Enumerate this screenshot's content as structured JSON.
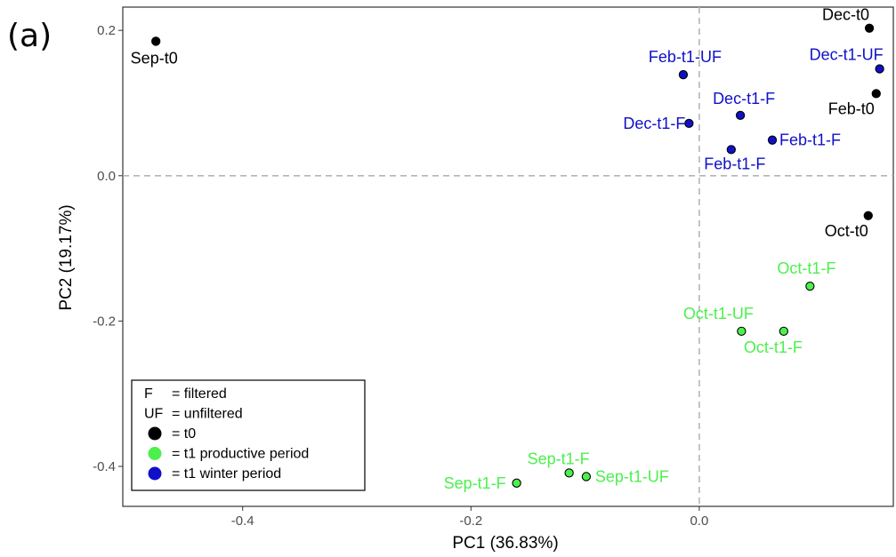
{
  "panel_label": "(a)",
  "chart_data": {
    "type": "scatter",
    "xlabel": "PC1 (36.83%)",
    "ylabel": "PC2 (19.17%)",
    "xlim": [
      -0.505,
      0.17
    ],
    "ylim": [
      -0.455,
      0.232
    ],
    "xticks": [
      -0.4,
      -0.2,
      0.0
    ],
    "yticks": [
      -0.4,
      -0.2,
      0.0,
      0.2
    ],
    "xtick_labels": [
      "-0.4",
      "-0.2",
      "0.0"
    ],
    "ytick_labels": [
      "-0.4",
      "-0.2",
      "0.0",
      "0.2"
    ],
    "reference_lines": {
      "x": 0.0,
      "y": 0.0,
      "style": "dashed"
    },
    "grid": false,
    "group_colors": {
      "t0": "#000000",
      "productive": "#4CF04C",
      "winter": "#1010C8"
    },
    "points": [
      {
        "label": "Sep-t0",
        "x": -0.476,
        "y": 0.185,
        "group": "t0"
      },
      {
        "label": "Dec-t0",
        "x": 0.149,
        "y": 0.203,
        "group": "t0"
      },
      {
        "label": "Feb-t0",
        "x": 0.155,
        "y": 0.113,
        "group": "t0"
      },
      {
        "label": "Oct-t0",
        "x": 0.148,
        "y": -0.055,
        "group": "t0"
      },
      {
        "label": "Feb-t1-UF",
        "x": -0.014,
        "y": 0.139,
        "group": "winter"
      },
      {
        "label": "Dec-t1-UF",
        "x": 0.158,
        "y": 0.147,
        "group": "winter"
      },
      {
        "label": "Dec-t1-F",
        "x": 0.036,
        "y": 0.083,
        "group": "winter"
      },
      {
        "label": "Dec-t1-F",
        "x": -0.009,
        "y": 0.072,
        "group": "winter"
      },
      {
        "label": "Feb-t1-F",
        "x": 0.064,
        "y": 0.049,
        "group": "winter"
      },
      {
        "label": "Feb-t1-F",
        "x": 0.028,
        "y": 0.036,
        "group": "winter"
      },
      {
        "label": "Oct-t1-F",
        "x": 0.097,
        "y": -0.152,
        "group": "productive"
      },
      {
        "label": "Oct-t1-UF",
        "x": 0.037,
        "y": -0.214,
        "group": "productive"
      },
      {
        "label": "Oct-t1-F",
        "x": 0.074,
        "y": -0.214,
        "group": "productive"
      },
      {
        "label": "Sep-t1-F",
        "x": -0.114,
        "y": -0.409,
        "group": "productive"
      },
      {
        "label": "Sep-t1-UF",
        "x": -0.099,
        "y": -0.414,
        "group": "productive"
      },
      {
        "label": "Sep-t1-F",
        "x": -0.16,
        "y": -0.423,
        "group": "productive"
      }
    ],
    "legend": {
      "placement": "bottom-left",
      "entries": [
        {
          "key": "F",
          "text": "= filtered"
        },
        {
          "key": "UF",
          "text": "= unfiltered"
        },
        {
          "marker": "t0",
          "text": "= t0"
        },
        {
          "marker": "productive",
          "text": "= t1 productive period"
        },
        {
          "marker": "winter",
          "text": "= t1 winter period"
        }
      ]
    }
  }
}
